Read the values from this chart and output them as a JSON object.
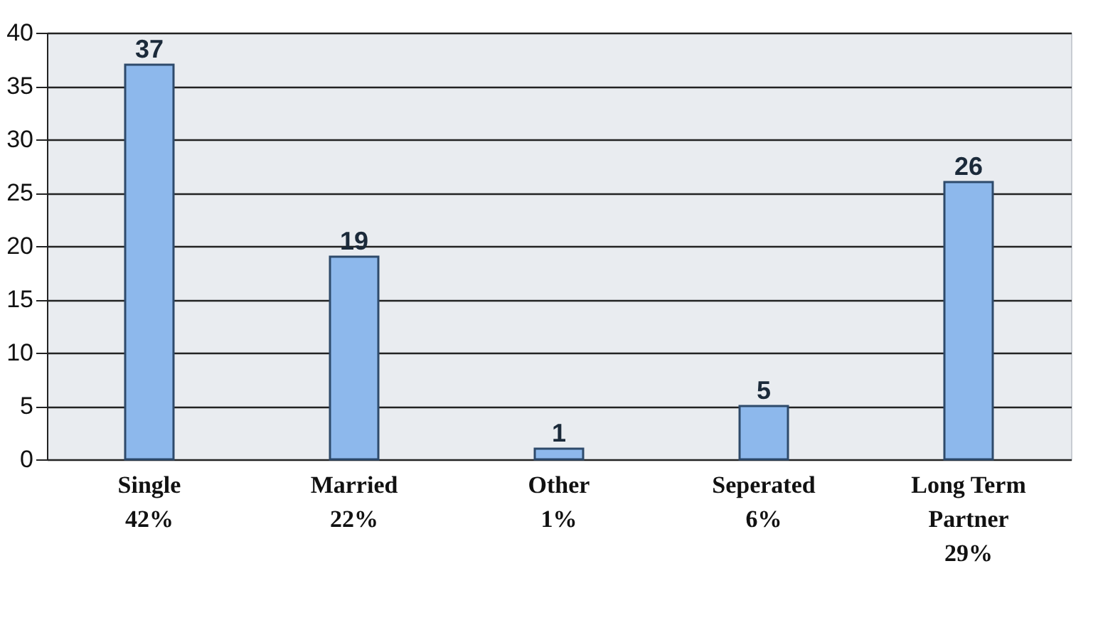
{
  "chart_data": {
    "type": "bar",
    "categories": [
      "Single\n42%",
      "Married\n22%",
      "Other\n1%",
      "Seperated\n6%",
      "Long Term\nPartner\n29%"
    ],
    "values": [
      37,
      19,
      1,
      5,
      26
    ],
    "color": "#8db8ec",
    "ylim": [
      0,
      40
    ],
    "yticks": [
      0,
      5,
      10,
      15,
      20,
      25,
      30,
      35,
      40
    ],
    "grid": "y",
    "data_labels": true
  }
}
